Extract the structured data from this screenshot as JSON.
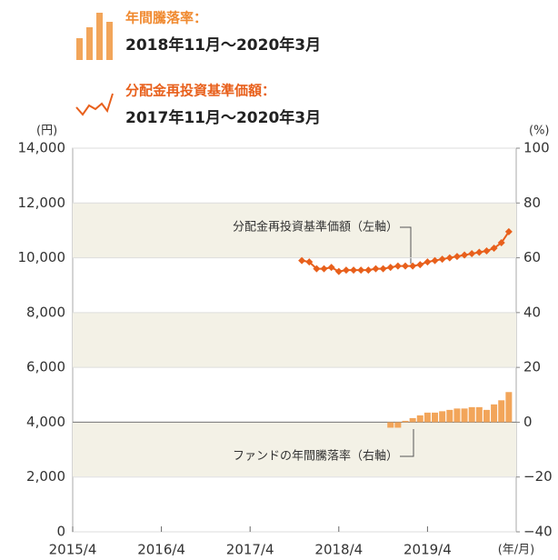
{
  "chart_data": {
    "type": "bar-line",
    "legend": [
      {
        "title": "年間騰落率：",
        "period": "2018年11月～2020年3月"
      },
      {
        "title": "分配金再投資基準価額：",
        "period": "2017年11月～2020年3月"
      }
    ],
    "ylabel": "(円)",
    "y2label": "(%)",
    "xlabel": "(年/月)",
    "xlim": [
      "2015/4",
      "2020/4"
    ],
    "xticks": [
      "2015/4",
      "2016/4",
      "2017/4",
      "2018/4",
      "2019/4"
    ],
    "ylim": [
      0,
      14000
    ],
    "yticks": [
      0,
      {
        "value": 2000,
        "label": "2,000"
      },
      {
        "value": 4000,
        "label": "4,000"
      },
      {
        "value": 6000,
        "label": "6,000"
      },
      {
        "value": 8000,
        "label": "8,000"
      },
      {
        "value": 10000,
        "label": "10,000"
      },
      {
        "value": 12000,
        "label": "12,000"
      },
      {
        "value": 14000,
        "label": "14,000"
      }
    ],
    "y2lim": [
      -40,
      100
    ],
    "y2ticks": [
      {
        "value": -40,
        "label": "−40"
      },
      {
        "value": -20,
        "label": "−20"
      },
      0,
      20,
      40,
      60,
      80,
      100
    ],
    "series": [
      {
        "name": "分配金再投資基準価額（左軸）",
        "type": "line",
        "axis": "y",
        "color": "#e8601c",
        "x": [
          "2017/11",
          "2017/12",
          "2018/1",
          "2018/2",
          "2018/3",
          "2018/4",
          "2018/5",
          "2018/6",
          "2018/7",
          "2018/8",
          "2018/9",
          "2018/10",
          "2018/11",
          "2018/12",
          "2019/1",
          "2019/2",
          "2019/3",
          "2019/4",
          "2019/5",
          "2019/6",
          "2019/7",
          "2019/8",
          "2019/9",
          "2019/10",
          "2019/11",
          "2019/12",
          "2020/1",
          "2020/2",
          "2020/3"
        ],
        "values": [
          9900,
          9850,
          9600,
          9600,
          9650,
          9500,
          9550,
          9550,
          9550,
          9550,
          9600,
          9600,
          9650,
          9700,
          9700,
          9700,
          9750,
          9850,
          9900,
          9950,
          10000,
          10050,
          10100,
          10150,
          10200,
          10250,
          10350,
          10550,
          10950
        ]
      },
      {
        "name": "ファンドの年間騰落率（右軸）",
        "type": "bar",
        "axis": "y2",
        "color": "#f2a55a",
        "x": [
          "2018/11",
          "2018/12",
          "2019/1",
          "2019/2",
          "2019/3",
          "2019/4",
          "2019/5",
          "2019/6",
          "2019/7",
          "2019/8",
          "2019/9",
          "2019/10",
          "2019/11",
          "2019/12",
          "2020/1",
          "2020/2",
          "2020/3"
        ],
        "values": [
          -2,
          -2,
          0.5,
          1.5,
          2.5,
          3.5,
          3.5,
          4,
          4.5,
          5,
          5,
          5.5,
          5.5,
          4.5,
          6.5,
          8,
          11
        ]
      }
    ]
  }
}
